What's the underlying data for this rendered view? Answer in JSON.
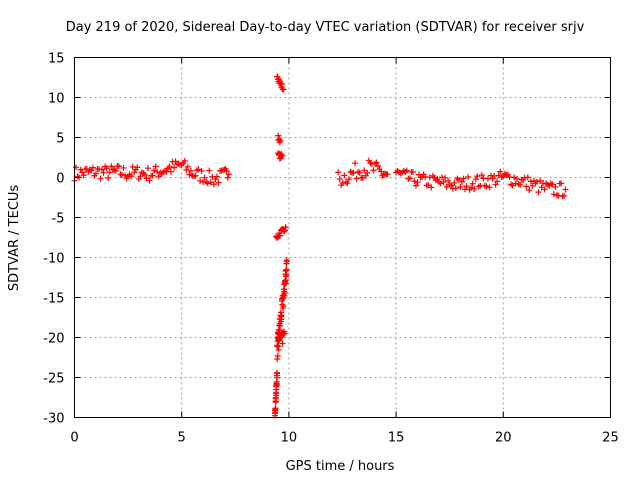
{
  "chart_data": {
    "type": "scatter",
    "title": "Day 219 of 2020, Sidereal Day-to-day VTEC variation (SDTVAR) for receiver srjv",
    "xlabel": "GPS time / hours",
    "ylabel": "SDTVAR / TECUs",
    "xlim": [
      0,
      25
    ],
    "ylim": [
      -30,
      15
    ],
    "xticks": [
      0,
      5,
      10,
      15,
      20,
      25
    ],
    "yticks": [
      -30,
      -25,
      -20,
      -15,
      -10,
      -5,
      0,
      5,
      10,
      15
    ],
    "grid": true,
    "marker": "+",
    "color": "#ff0000",
    "series": [
      {
        "name": "SDTVAR",
        "segments": [
          {
            "x": [
              0.0,
              0.5,
              1.0,
              1.5,
              2.0,
              2.5,
              3.0,
              3.5,
              4.0,
              4.5,
              5.0,
              5.5,
              6.0,
              6.5,
              7.0,
              7.2
            ],
            "y": [
              0.5,
              0.6,
              0.7,
              0.6,
              0.7,
              0.5,
              0.6,
              0.4,
              0.8,
              1.2,
              1.6,
              0.5,
              0.2,
              -0.2,
              0.3,
              0.4
            ],
            "spread": 0.9
          },
          {
            "x": [
              9.45,
              9.55,
              9.65,
              9.75
            ],
            "y": [
              13.0,
              12.0,
              11.5,
              11.0
            ],
            "spread": 0.4
          },
          {
            "x": [
              9.5,
              9.6
            ],
            "y": [
              5.0,
              4.6
            ],
            "spread": 0.3
          },
          {
            "x": [
              9.5,
              9.6,
              9.7
            ],
            "y": [
              2.8,
              2.6,
              2.7
            ],
            "spread": 0.3
          },
          {
            "x": [
              9.4,
              9.55,
              9.7,
              9.85
            ],
            "y": [
              -7.5,
              -7.0,
              -6.6,
              -6.2
            ],
            "spread": 0.4
          },
          {
            "x": [
              9.45,
              9.55,
              9.65,
              9.75,
              9.85,
              9.9
            ],
            "y": [
              -22.0,
              -19.0,
              -17.0,
              -15.0,
              -12.5,
              -10.5
            ],
            "spread": 1.2
          },
          {
            "x": [
              9.5,
              9.6,
              9.7,
              9.8
            ],
            "y": [
              -21.0,
              -20.5,
              -20.0,
              -19.5
            ],
            "spread": 0.8
          },
          {
            "x": [
              9.35,
              9.4,
              9.45
            ],
            "y": [
              -29.5,
              -27.0,
              -24.5
            ],
            "spread": 0.5
          },
          {
            "x": [
              12.3,
              12.8,
              13.3,
              13.8,
              14.3,
              14.6
            ],
            "y": [
              -0.3,
              0.3,
              1.0,
              1.2,
              0.6,
              0.4
            ],
            "spread": 1.1
          },
          {
            "x": [
              15.0,
              15.5,
              16.0,
              16.5,
              17.0,
              17.5,
              18.0,
              18.5,
              19.0,
              19.5,
              20.0,
              20.5,
              21.0,
              21.5,
              22.0,
              22.5,
              22.9
            ],
            "y": [
              0.5,
              0.0,
              -0.3,
              -0.5,
              -0.6,
              -0.8,
              -0.9,
              -0.6,
              -0.5,
              -0.3,
              0.0,
              -0.2,
              -0.6,
              -1.0,
              -1.4,
              -1.6,
              -1.5
            ],
            "spread": 0.9
          }
        ]
      }
    ]
  }
}
